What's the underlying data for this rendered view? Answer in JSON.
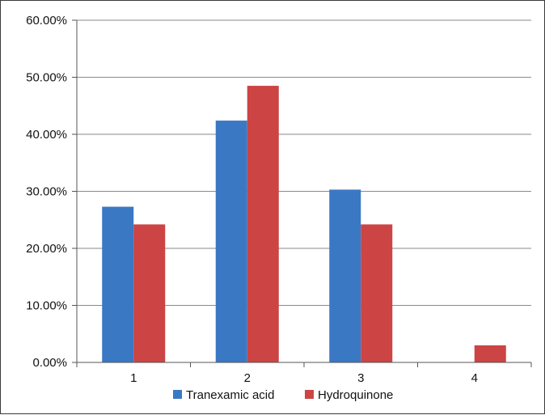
{
  "chart_data": {
    "type": "bar",
    "categories": [
      "1",
      "2",
      "3",
      "4"
    ],
    "series": [
      {
        "name": "Tranexamic acid",
        "color": "#3b78c4",
        "values": [
          27.3,
          42.4,
          30.3,
          0
        ]
      },
      {
        "name": "Hydroquinone",
        "color": "#cc4444",
        "values": [
          24.2,
          48.5,
          24.2,
          3.0
        ]
      }
    ],
    "title": "",
    "xlabel": "",
    "ylabel": "",
    "ylim": [
      0,
      60
    ],
    "yticks": [
      0,
      10,
      20,
      30,
      40,
      50,
      60
    ],
    "ytick_labels": [
      "0.00%",
      "10.00%",
      "20.00%",
      "30.00%",
      "40.00%",
      "50.00%",
      "60.00%"
    ],
    "grid": true,
    "legend": "bottom"
  }
}
